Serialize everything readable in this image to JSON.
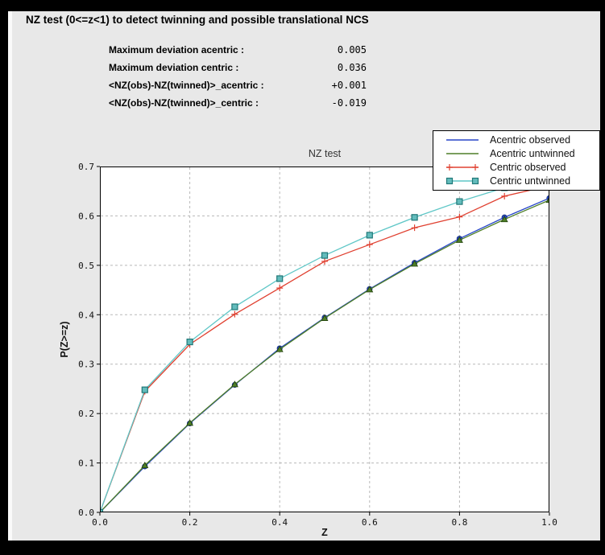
{
  "window": {
    "title": "NZ test (0<=z<1) to detect twinning and possible translational NCS"
  },
  "stats": [
    {
      "label": "Maximum deviation acentric :",
      "value": "0.005"
    },
    {
      "label": "Maximum deviation centric :",
      "value": "0.036"
    },
    {
      "label": "<NZ(obs)-NZ(twinned)>_acentric :",
      "value": "+0.001"
    },
    {
      "label": "<NZ(obs)-NZ(twinned)>_centric :",
      "value": "-0.019"
    }
  ],
  "chart_data": {
    "type": "line",
    "title": "NZ test",
    "xlabel": "Z",
    "ylabel": "P(Z>=z)",
    "xlim": [
      0.0,
      1.0
    ],
    "ylim": [
      0.0,
      0.7
    ],
    "xticks": [
      0.0,
      0.2,
      0.4,
      0.6,
      0.8,
      1.0
    ],
    "yticks": [
      0.0,
      0.1,
      0.2,
      0.3,
      0.4,
      0.5,
      0.6,
      0.7
    ],
    "grid": true,
    "legend_position": "upper right",
    "x": [
      0.0,
      0.1,
      0.2,
      0.3,
      0.4,
      0.5,
      0.6,
      0.7,
      0.8,
      0.9,
      1.0
    ],
    "series": [
      {
        "name": "Acentric observed",
        "color": "#2645c8",
        "marker": "circle",
        "marker_fill": "#2645c8",
        "marker_edge": "#16307e",
        "values": [
          0.0,
          0.093,
          0.18,
          0.258,
          0.332,
          0.394,
          0.452,
          0.505,
          0.554,
          0.597,
          0.636
        ]
      },
      {
        "name": "Acentric untwinned",
        "color": "#4f7f28",
        "marker": "triangle",
        "marker_fill": "#4f7f28",
        "marker_edge": "#20400a",
        "values": [
          0.0,
          0.095,
          0.181,
          0.259,
          0.33,
          0.393,
          0.451,
          0.503,
          0.551,
          0.593,
          0.632
        ]
      },
      {
        "name": "Centric observed",
        "color": "#e04030",
        "marker": "plus",
        "marker_fill": "none",
        "marker_edge": "#e04030",
        "values": [
          0.0,
          0.245,
          0.34,
          0.401,
          0.454,
          0.508,
          0.542,
          0.576,
          0.598,
          0.64,
          0.661
        ]
      },
      {
        "name": "Centric untwinned",
        "color": "#5fc7c7",
        "marker": "square",
        "marker_fill": "#63bcbc",
        "marker_edge": "#207878",
        "values": [
          0.0,
          0.248,
          0.345,
          0.416,
          0.473,
          0.52,
          0.561,
          0.597,
          0.629,
          0.657,
          0.683
        ]
      }
    ],
    "colors": {
      "panel_bg": "#e8e8e8",
      "axes_bg": "#ffffff",
      "grid": "#b8b8b8",
      "frame": "#000000",
      "legend_bg": "#ffffff",
      "tick_text": "#111111"
    }
  }
}
